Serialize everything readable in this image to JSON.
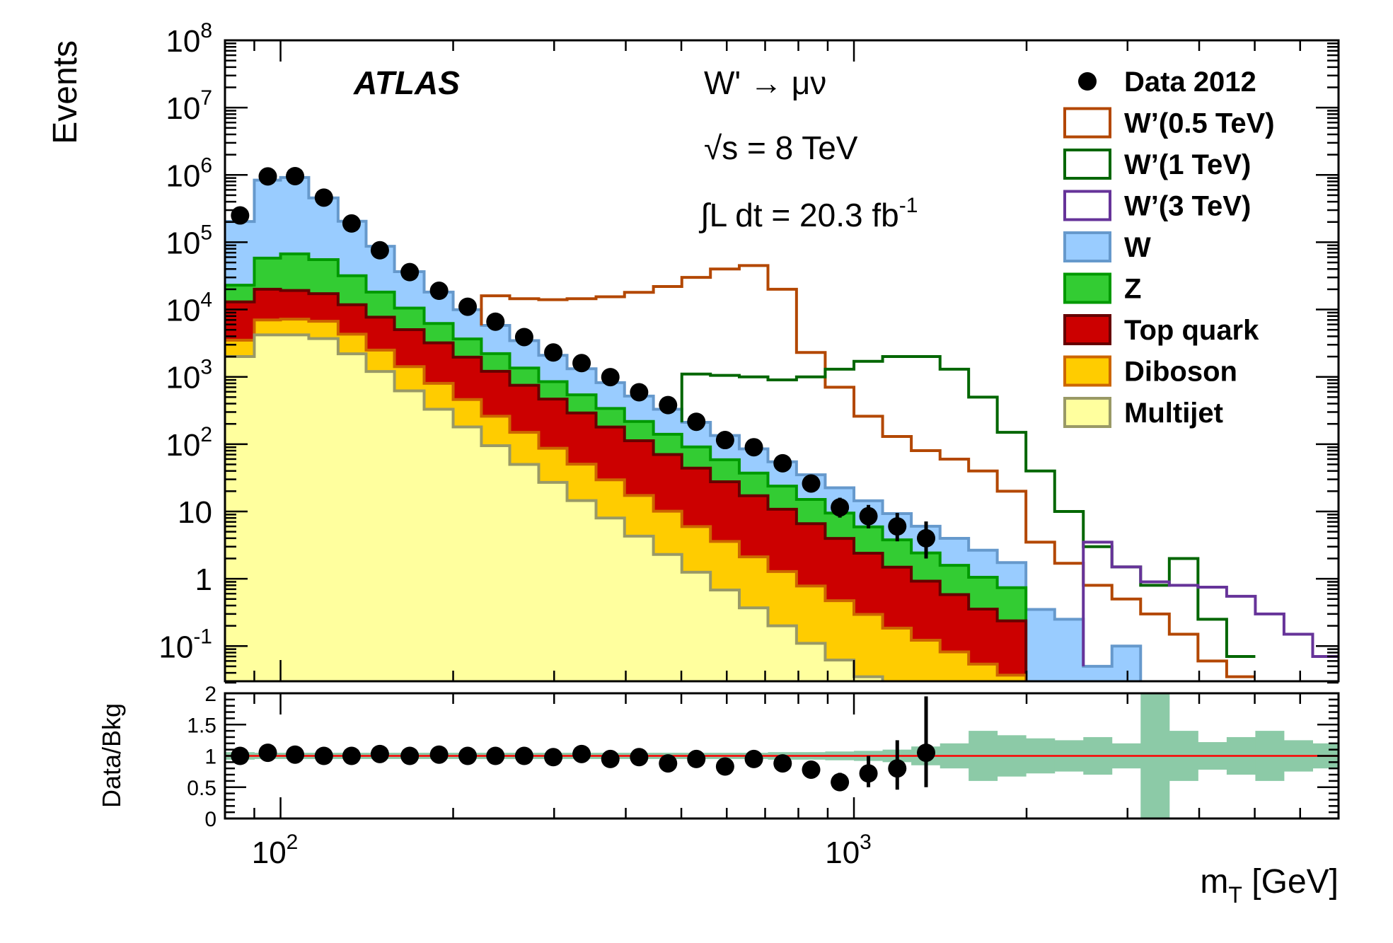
{
  "chart_data": {
    "type": "histogram",
    "x_scale": "log",
    "y_scale": "log",
    "xlim": [
      80,
      7000
    ],
    "ylim": [
      0.03,
      100000000
    ],
    "xlabel": "m",
    "xlabel_sub": "T",
    "xlabel_unit": " [GeV]",
    "ylabel": "Events",
    "x_ticks": [
      {
        "value": 100,
        "base": "10",
        "exp": "2"
      },
      {
        "value": 1000,
        "base": "10",
        "exp": "3"
      }
    ],
    "y_ticks": [
      {
        "value": 100000000,
        "base": "10",
        "exp": "8"
      },
      {
        "value": 10000000,
        "base": "10",
        "exp": "7"
      },
      {
        "value": 1000000,
        "base": "10",
        "exp": "6"
      },
      {
        "value": 100000,
        "base": "10",
        "exp": "5"
      },
      {
        "value": 10000,
        "base": "10",
        "exp": "4"
      },
      {
        "value": 1000,
        "base": "10",
        "exp": "3"
      },
      {
        "value": 100,
        "base": "10",
        "exp": "2"
      },
      {
        "value": 10,
        "base": "10",
        "exp": ""
      },
      {
        "value": 1,
        "base": "1",
        "exp": ""
      },
      {
        "value": 0.1,
        "base": "10",
        "exp": "-1"
      }
    ],
    "experiment_label": "ATLAS",
    "process_label": "W' → μν",
    "energy_label": "√s = 8 TeV",
    "lumi_label": "∫L dt = 20.3 fb",
    "lumi_exp": "-1",
    "bin_edges": [
      80,
      90,
      100,
      112,
      126,
      141,
      158,
      178,
      200,
      224,
      251,
      282,
      316,
      355,
      398,
      447,
      501,
      562,
      631,
      708,
      794,
      891,
      1000,
      1122,
      1259,
      1413,
      1585,
      1778,
      1995,
      2239,
      2512,
      2818,
      3162,
      3548,
      3981,
      4467,
      5012,
      5623,
      6310,
      7000
    ],
    "stack_series": [
      {
        "name": "Multijet",
        "fill": "#ffff9e",
        "line": "#999966",
        "values": [
          2000,
          4200,
          4200,
          3700,
          2200,
          1200,
          620,
          330,
          180,
          95,
          50,
          27,
          14.5,
          8,
          4.3,
          2.3,
          1.25,
          0.68,
          0.37,
          0.2,
          0.11,
          0.062,
          0.035,
          0.02,
          0.012,
          0.007,
          0.004,
          0.002,
          0,
          0,
          0,
          0,
          0,
          0,
          0,
          0,
          0,
          0,
          0
        ]
      },
      {
        "name": "Diboson",
        "fill": "#ffcc00",
        "line": "#cc6600",
        "values": [
          1500,
          2800,
          3000,
          3000,
          2100,
          1300,
          800,
          470,
          280,
          165,
          100,
          60,
          36,
          21.5,
          13,
          7.8,
          4.7,
          2.9,
          1.75,
          1.08,
          0.67,
          0.41,
          0.26,
          0.165,
          0.11,
          0.075,
          0.05,
          0.035,
          0,
          0,
          0,
          0,
          0,
          0,
          0,
          0,
          0,
          0,
          0
        ]
      },
      {
        "name": "Top quark",
        "fill": "#cc0000",
        "line": "#660000",
        "values": [
          9500,
          13000,
          12000,
          10500,
          7500,
          5200,
          3600,
          2400,
          1500,
          950,
          600,
          380,
          240,
          150,
          95,
          60,
          38,
          24,
          15,
          9.5,
          5.8,
          3.5,
          2.1,
          1.3,
          0.8,
          0.5,
          0.3,
          0.2,
          0,
          0,
          0,
          0,
          0,
          0,
          0,
          0,
          0,
          0,
          0
        ]
      },
      {
        "name": "Z",
        "fill": "#33cc33",
        "line": "#009900",
        "values": [
          10000,
          38000,
          48000,
          38000,
          20000,
          10500,
          5500,
          3000,
          1700,
          1000,
          600,
          380,
          250,
          160,
          105,
          70,
          47,
          31,
          20,
          13,
          8.5,
          5.5,
          3.5,
          2.3,
          1.5,
          1.0,
          0.7,
          0.5,
          0,
          0,
          0,
          0,
          0,
          0,
          0,
          0,
          0,
          0,
          0
        ]
      },
      {
        "name": "W",
        "fill": "#99ccff",
        "line": "#6699cc",
        "values": [
          180000,
          780000,
          850000,
          400000,
          173000,
          69000,
          26000,
          12000,
          6300,
          3600,
          2100,
          1240,
          780,
          480,
          300,
          190,
          120,
          76,
          48,
          31,
          20,
          13,
          8.5,
          5.5,
          3.6,
          2.4,
          1.6,
          1.0,
          0.35,
          0.25,
          0.05,
          0.1,
          0.03,
          0,
          0,
          0,
          0,
          0,
          0
        ]
      }
    ],
    "signal_series": [
      {
        "name": "W’(0.5 TeV)",
        "color": "#b34700",
        "values": [
          0,
          0,
          0,
          0,
          0,
          0,
          0,
          0,
          0,
          16000,
          14500,
          14000,
          14500,
          15500,
          18000,
          22000,
          30000,
          40000,
          45000,
          20000,
          2300,
          700,
          260,
          130,
          80,
          60,
          40,
          20,
          3.5,
          1.7,
          0.8,
          0.5,
          0.3,
          0.15,
          0.06,
          0.035,
          0,
          0,
          0
        ]
      },
      {
        "name": "W’(1 TeV)",
        "color": "#006600",
        "values": [
          0,
          0,
          0,
          0,
          0,
          0,
          0,
          0,
          0,
          0,
          0,
          0,
          0,
          0,
          0,
          0,
          1100,
          1050,
          1000,
          900,
          1000,
          1300,
          1700,
          2000,
          2000,
          1300,
          500,
          150,
          40,
          10,
          3,
          1.5,
          0.8,
          2.0,
          0.25,
          0.07,
          0,
          0,
          0
        ]
      },
      {
        "name": "W’(3 TeV)",
        "color": "#663399",
        "values": [
          0,
          0,
          0,
          0,
          0,
          0,
          0,
          0,
          0,
          0,
          0,
          0,
          0,
          0,
          0,
          0,
          0,
          0,
          0,
          0,
          0,
          0,
          0,
          0,
          0,
          0,
          0,
          0,
          0,
          0,
          3.5,
          1.5,
          0.9,
          0.8,
          0.75,
          0.55,
          0.3,
          0.15,
          0.07
        ]
      }
    ],
    "data_series": {
      "name": "Data 2012",
      "x": [
        85,
        95,
        106,
        119,
        133,
        149,
        168,
        189,
        212,
        237,
        266,
        299,
        335,
        376,
        422,
        474,
        531,
        596,
        669,
        751,
        842,
        945,
        1060,
        1190,
        1336
      ],
      "y": [
        250000,
        950000,
        960000,
        460000,
        190000,
        76000,
        36000,
        19000,
        11000,
        6600,
        3900,
        2300,
        1600,
        990,
        590,
        380,
        215,
        115,
        90,
        52,
        26,
        11.5,
        8.5,
        6,
        4
      ],
      "err_lo": [
        0,
        0,
        0,
        0,
        0,
        0,
        0,
        0,
        0,
        0,
        0,
        0,
        0,
        0,
        0,
        0,
        0,
        0,
        0,
        0,
        0,
        3.4,
        2.9,
        2.4,
        2.0
      ],
      "err_hi": [
        0,
        0,
        0,
        0,
        0,
        0,
        0,
        0,
        0,
        0,
        0,
        0,
        0,
        0,
        0,
        0,
        0,
        0,
        0,
        0,
        0,
        4.5,
        4.0,
        3.5,
        3.1
      ]
    },
    "legend": {
      "position": "top-right",
      "entries": [
        {
          "label": "Data 2012",
          "style": "marker"
        },
        {
          "label": "W’(0.5 TeV)",
          "style": "line",
          "color": "#b34700"
        },
        {
          "label": "W’(1 TeV)",
          "style": "line",
          "color": "#006600"
        },
        {
          "label": "W’(3 TeV)",
          "style": "line",
          "color": "#663399"
        },
        {
          "label": "W",
          "style": "fill",
          "fill": "#99ccff",
          "line": "#6699cc"
        },
        {
          "label": "Z",
          "style": "fill",
          "fill": "#33cc33",
          "line": "#009900"
        },
        {
          "label": "Top quark",
          "style": "fill",
          "fill": "#cc0000",
          "line": "#660000"
        },
        {
          "label": "Diboson",
          "style": "fill",
          "fill": "#ffcc00",
          "line": "#cc6600"
        },
        {
          "label": "Multijet",
          "style": "fill",
          "fill": "#ffff9e",
          "line": "#999966"
        }
      ]
    },
    "ratio_panel": {
      "ylabel": "Data/Bkg",
      "ylim": [
        0,
        2
      ],
      "y_ticks": [
        {
          "value": 0,
          "label": "0"
        },
        {
          "value": 0.5,
          "label": "0.5"
        },
        {
          "value": 1,
          "label": "1"
        },
        {
          "value": 1.5,
          "label": "1.5"
        },
        {
          "value": 2,
          "label": "2"
        }
      ],
      "reference_line": 1,
      "reference_color": "#ff0000",
      "band_color": "#8ccaa7",
      "band_half_width": [
        0.06,
        0.05,
        0.05,
        0.05,
        0.05,
        0.05,
        0.05,
        0.05,
        0.05,
        0.05,
        0.05,
        0.05,
        0.05,
        0.05,
        0.05,
        0.05,
        0.05,
        0.05,
        0.05,
        0.06,
        0.06,
        0.07,
        0.08,
        0.1,
        0.15,
        0.2,
        0.4,
        0.33,
        0.28,
        0.25,
        0.3,
        0.2,
        1.0,
        0.4,
        0.22,
        0.3,
        0.4,
        0.25,
        0.2
      ],
      "x": [
        85,
        95,
        106,
        119,
        133,
        149,
        168,
        189,
        212,
        237,
        266,
        299,
        335,
        376,
        422,
        474,
        531,
        596,
        669,
        751,
        842,
        945,
        1060,
        1190,
        1336
      ],
      "y": [
        1.0,
        1.05,
        1.02,
        1.0,
        1.0,
        1.03,
        1.0,
        1.02,
        1.0,
        1.0,
        1.0,
        0.98,
        1.03,
        0.95,
        0.98,
        0.88,
        0.95,
        0.83,
        0.95,
        0.88,
        0.78,
        0.58,
        0.72,
        0.8,
        1.05
      ],
      "err_lo": [
        0,
        0,
        0,
        0,
        0,
        0,
        0,
        0,
        0,
        0,
        0,
        0,
        0,
        0,
        0,
        0,
        0,
        0,
        0,
        0,
        0.08,
        0.13,
        0.22,
        0.34,
        0.55
      ],
      "err_hi": [
        0,
        0,
        0,
        0,
        0,
        0,
        0,
        0,
        0,
        0,
        0,
        0,
        0,
        0,
        0,
        0,
        0,
        0,
        0,
        0,
        0.08,
        0.15,
        0.28,
        0.45,
        0.9
      ]
    }
  }
}
